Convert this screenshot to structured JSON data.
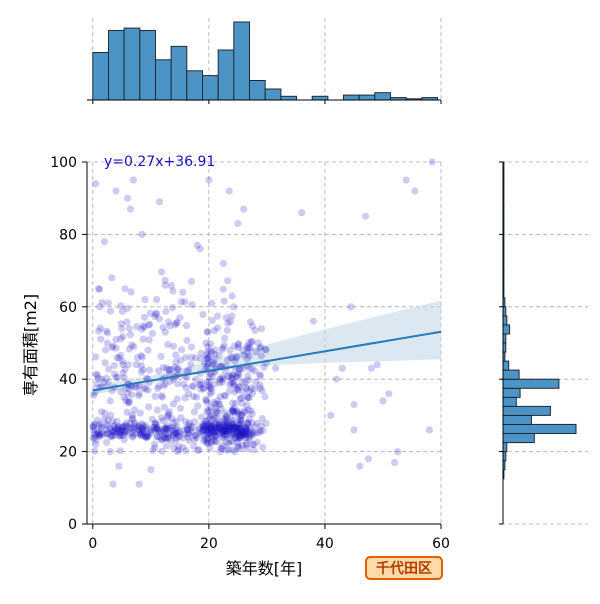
{
  "chart_data": {
    "type": "scatter",
    "title": "",
    "xlabel": "築年数[年]",
    "ylabel": "専有面積[m2]",
    "xlim": [
      -1,
      60
    ],
    "ylim": [
      0,
      100
    ],
    "xticks": [
      0,
      20,
      40,
      60
    ],
    "yticks": [
      0,
      20,
      40,
      60,
      80,
      100
    ],
    "grid": true,
    "regression": {
      "equation": "y=0.27x+36.91",
      "slope": 0.27,
      "intercept": 36.91,
      "confidence_band": {
        "x": [
          0,
          10,
          20,
          30,
          40,
          50,
          60
        ],
        "lower": [
          35.6,
          38.9,
          42.0,
          43.8,
          44.5,
          45.0,
          45.5
        ],
        "upper": [
          38.3,
          40.9,
          45.0,
          49.5,
          53.8,
          57.8,
          61.7
        ]
      }
    },
    "top_histogram": {
      "bin_edges": [
        0,
        2.7,
        5.4,
        8.1,
        10.8,
        13.5,
        16.2,
        18.9,
        21.6,
        24.3,
        27,
        29.7,
        32.4,
        35.1,
        37.8,
        40.5,
        43.2,
        45.9,
        48.6,
        51.3,
        54,
        56.7,
        59.4
      ],
      "counts": [
        39,
        57,
        59,
        57,
        33,
        44,
        24,
        20,
        41,
        64,
        16,
        9,
        3,
        0,
        3,
        0,
        4,
        4,
        6,
        2,
        1,
        2
      ]
    },
    "right_histogram": {
      "bin_edges": [
        0,
        2.5,
        5,
        7.5,
        10,
        12.5,
        15,
        17.5,
        20,
        22.5,
        25,
        27.5,
        30,
        32.5,
        35,
        37.5,
        40,
        42.5,
        45,
        47.5,
        50,
        52.5,
        55,
        57.5,
        60,
        62.5,
        65,
        67.5,
        70,
        72.5,
        75,
        77.5,
        80,
        82.5,
        85,
        87.5,
        90,
        92.5,
        95,
        97.5,
        100
      ],
      "counts": [
        0,
        0,
        0,
        0,
        0,
        1,
        2,
        3,
        4,
        33,
        77,
        30,
        50,
        14,
        18,
        59,
        17,
        6,
        2,
        3,
        3,
        7,
        4,
        3,
        2,
        1,
        1,
        1,
        1,
        1,
        1,
        1,
        1,
        1,
        1,
        1,
        1,
        1,
        1,
        1,
        1
      ]
    },
    "points": [
      [
        0.5,
        94
      ],
      [
        0.8,
        25
      ],
      [
        1.0,
        65
      ],
      [
        1.2,
        60
      ],
      [
        1.5,
        40
      ],
      [
        1.5,
        31
      ],
      [
        0.5,
        22
      ],
      [
        2.0,
        78
      ],
      [
        2.5,
        50
      ],
      [
        3.0,
        34
      ],
      [
        3.0,
        20
      ],
      [
        4.0,
        92
      ],
      [
        4.5,
        16
      ],
      [
        3.5,
        11
      ],
      [
        5.0,
        54
      ],
      [
        5.5,
        26
      ],
      [
        6.0,
        90
      ],
      [
        6.5,
        87
      ],
      [
        7.0,
        95
      ],
      [
        7.5,
        44
      ],
      [
        8.0,
        36
      ],
      [
        8.0,
        11
      ],
      [
        8.5,
        80
      ],
      [
        9.0,
        62
      ],
      [
        9.5,
        48
      ],
      [
        10.0,
        26
      ],
      [
        10.0,
        15
      ],
      [
        11.0,
        62
      ],
      [
        11.5,
        89
      ],
      [
        12.0,
        40
      ],
      [
        12.5,
        53
      ],
      [
        13.0,
        30
      ],
      [
        13.5,
        23
      ],
      [
        14.0,
        25
      ],
      [
        15.0,
        57
      ],
      [
        15.5,
        64
      ],
      [
        16.0,
        46
      ],
      [
        16.5,
        36
      ],
      [
        17.0,
        67
      ],
      [
        17.5,
        31
      ],
      [
        18.0,
        77
      ],
      [
        18.5,
        76
      ],
      [
        19.0,
        26
      ],
      [
        19.5,
        50
      ],
      [
        20.0,
        95
      ],
      [
        20.5,
        61
      ],
      [
        21.0,
        44
      ],
      [
        21.5,
        34
      ],
      [
        22.0,
        20
      ],
      [
        22.5,
        40
      ],
      [
        22.5,
        72
      ],
      [
        23.0,
        57
      ],
      [
        23.5,
        92
      ],
      [
        23.5,
        27
      ],
      [
        24.0,
        63
      ],
      [
        24.5,
        45
      ],
      [
        25.0,
        83
      ],
      [
        26.0,
        87
      ],
      [
        27.0,
        43
      ],
      [
        27.5,
        36
      ],
      [
        28.5,
        50
      ],
      [
        31.5,
        43
      ],
      [
        36.0,
        86
      ],
      [
        38.0,
        56
      ],
      [
        41.0,
        30
      ],
      [
        42.0,
        40
      ],
      [
        43.0,
        43
      ],
      [
        44.5,
        60
      ],
      [
        45.0,
        33
      ],
      [
        45.0,
        26
      ],
      [
        46.0,
        16
      ],
      [
        47.5,
        18
      ],
      [
        48.0,
        43
      ],
      [
        49.0,
        44
      ],
      [
        50.0,
        34
      ],
      [
        51.0,
        36
      ],
      [
        52.0,
        17
      ],
      [
        52.5,
        20
      ],
      [
        54.0,
        95
      ],
      [
        55.5,
        92
      ],
      [
        58.0,
        26
      ],
      [
        58.5,
        100
      ],
      [
        47.0,
        85
      ]
    ]
  },
  "labels": {
    "equation_text": "y=0.27x+36.91",
    "area_badge": "千代田区"
  },
  "colors": {
    "points": "#1a11c4",
    "histogram_fill": "#4c93c6",
    "histogram_edge": "#1e2a35",
    "regression_line": "#2a7ab8",
    "confidence_band": "#c3d8ea",
    "grid": "#aaaaaa",
    "equation_text": "#1a11c4",
    "badge_fill": "#ffd9a8",
    "badge_border": "#e06000",
    "badge_text": "#b23c00"
  }
}
